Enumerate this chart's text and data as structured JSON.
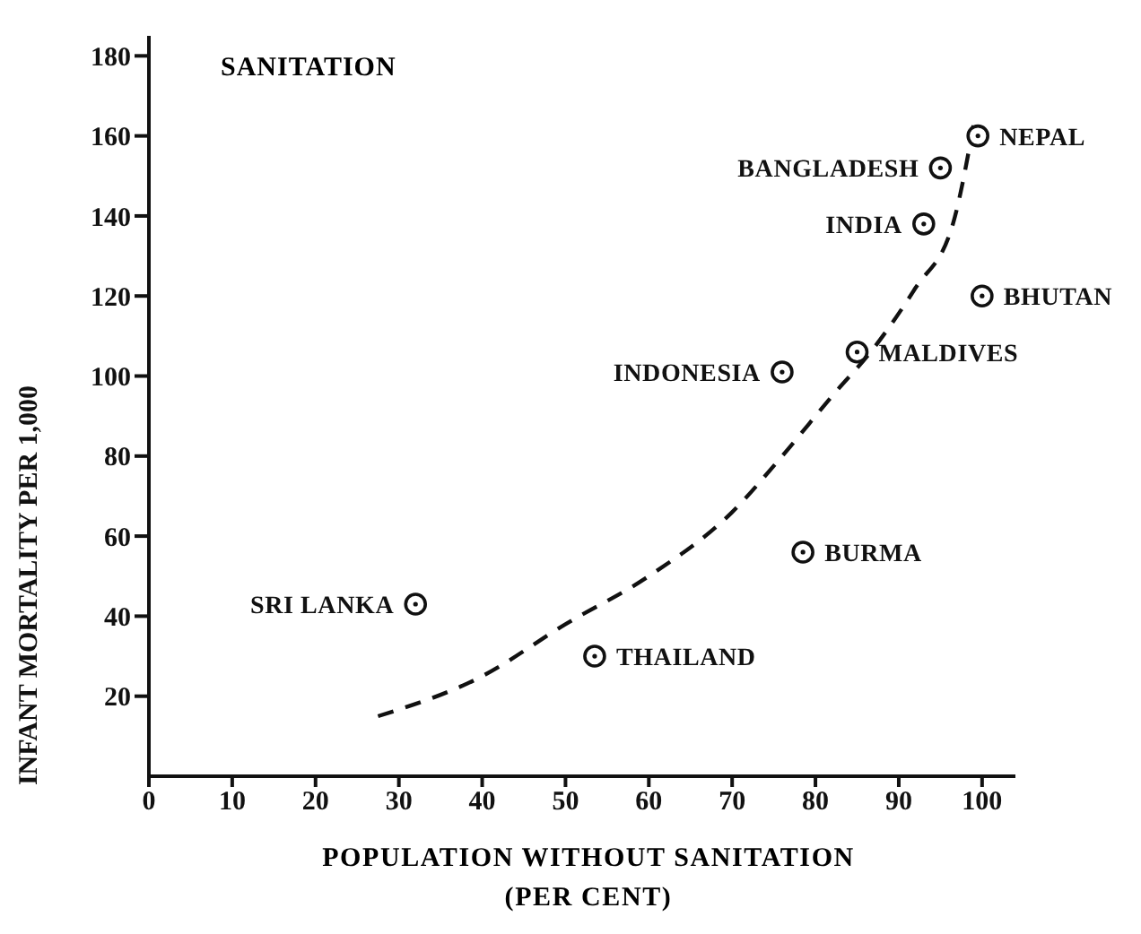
{
  "chart_data": {
    "type": "scatter",
    "title": "SANITATION",
    "xlabel": "POPULATION WITHOUT SANITATION (PER CENT)",
    "ylabel": "INFANT MORTALITY PER 1,000",
    "xlim": [
      0,
      104
    ],
    "xticks": [
      0,
      10,
      20,
      30,
      40,
      50,
      60,
      70,
      80,
      90,
      100
    ],
    "ylim": [
      0,
      185
    ],
    "yticks": [
      20,
      40,
      60,
      80,
      100,
      120,
      140,
      160,
      180
    ],
    "grid": false,
    "legend": false,
    "marker": "circle",
    "series": [
      {
        "color": "#111111",
        "x": [
          32,
          53.5,
          78.5,
          76,
          85,
          100,
          93,
          95,
          99.5
        ],
        "values": [
          43,
          30,
          56,
          101,
          106,
          120,
          138,
          152,
          160
        ]
      },
      {
        "type": "line",
        "color": "#111111",
        "line_style": "dashed",
        "marker": "none",
        "x": [
          27.5,
          40,
          50,
          60,
          70,
          76,
          82,
          87,
          92,
          96.5,
          99
        ],
        "values": [
          15,
          25,
          38,
          50,
          66,
          80,
          95,
          107,
          122,
          138,
          163
        ]
      }
    ],
    "annotations": [
      {
        "text": "SRI LANKA",
        "x": 32,
        "y": 43
      },
      {
        "text": "THAILAND",
        "x": 53.5,
        "y": 30
      },
      {
        "text": "BURMA",
        "x": 78.5,
        "y": 56
      },
      {
        "text": "INDONESIA",
        "x": 76,
        "y": 101
      },
      {
        "text": "MALDIVES",
        "x": 85,
        "y": 106
      },
      {
        "text": "BHUTAN",
        "x": 100,
        "y": 120
      },
      {
        "text": "INDIA",
        "x": 93,
        "y": 138
      },
      {
        "text": "BANGLADESH",
        "x": 95,
        "y": 152
      },
      {
        "text": "NEPAL",
        "x": 99.5,
        "y": 160
      }
    ]
  }
}
